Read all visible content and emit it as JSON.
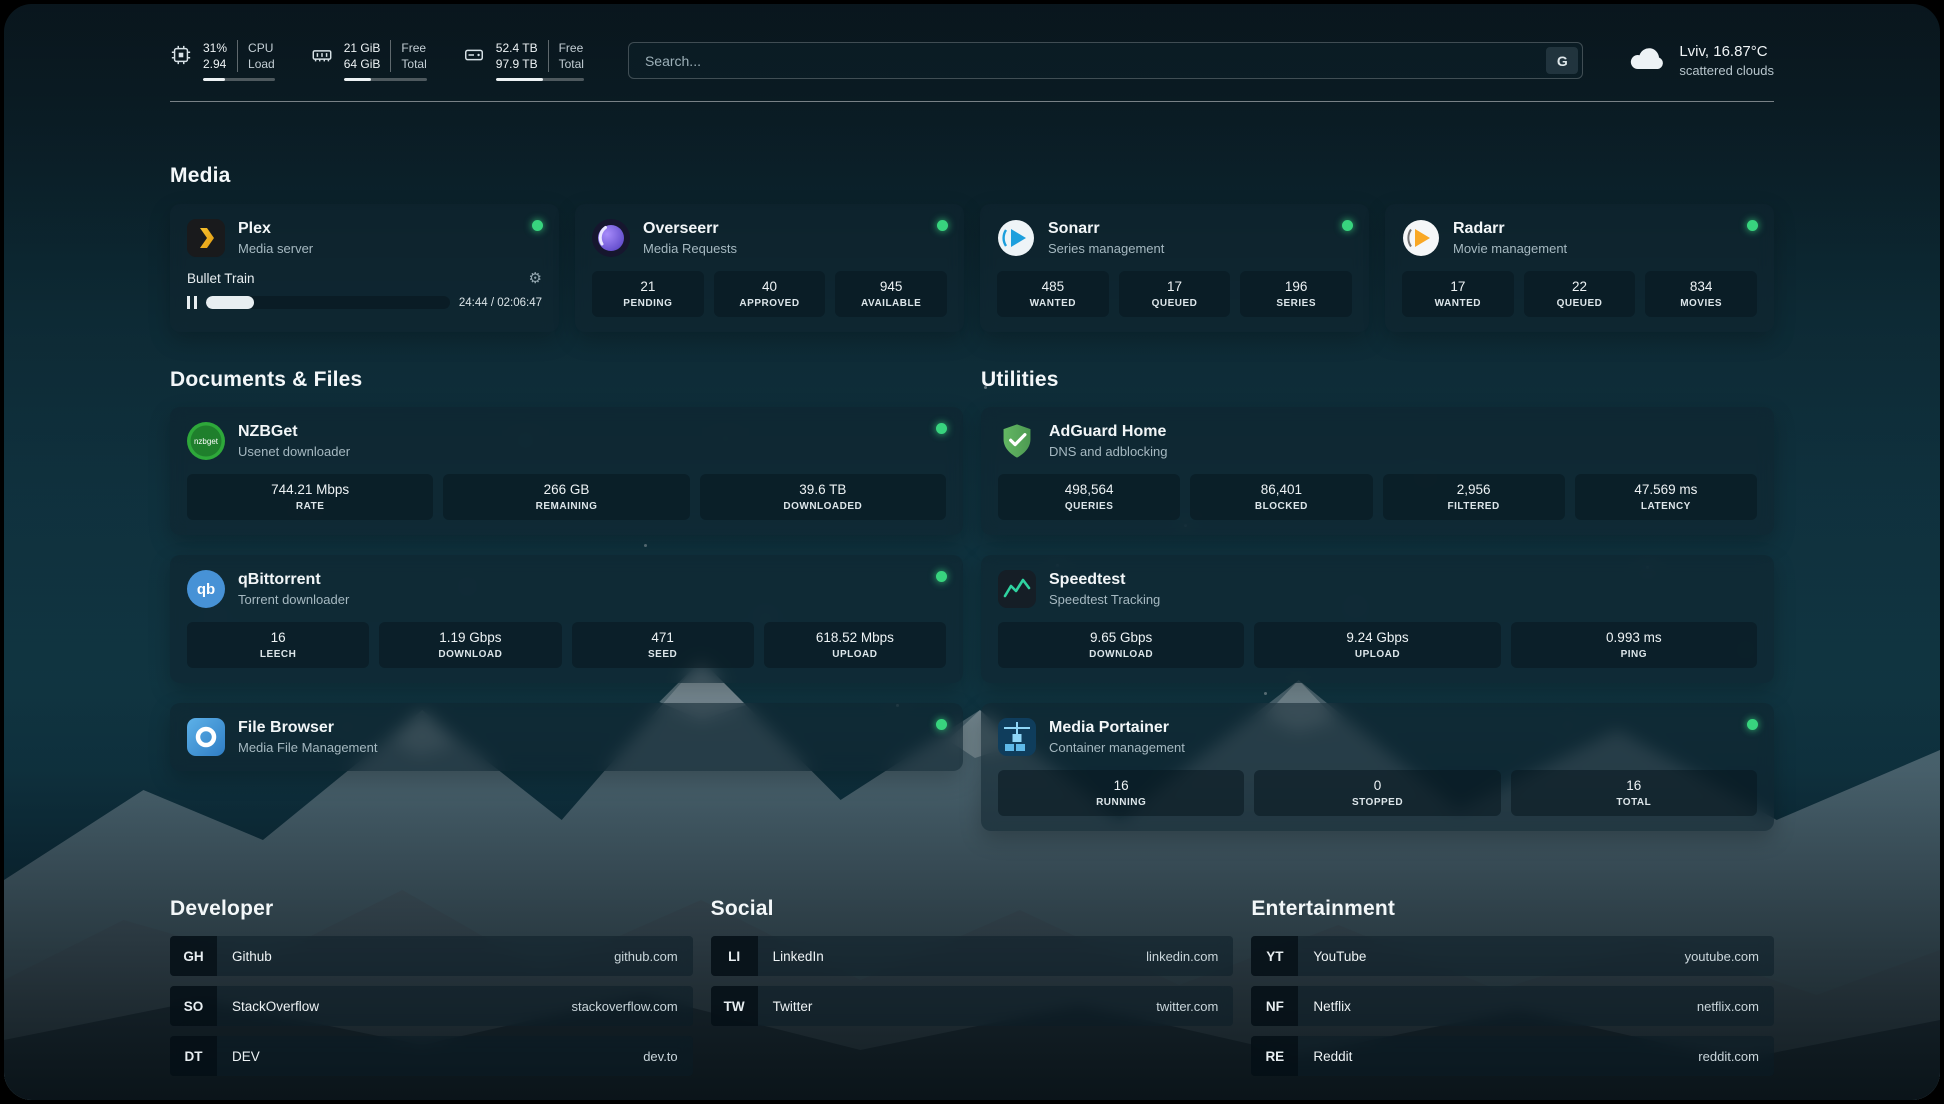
{
  "topbar": {
    "cpu": {
      "line1": "31%",
      "line2": "2.94",
      "label_line1": "CPU",
      "label_line2": "Load",
      "progress": 31
    },
    "ram": {
      "line1": "21 GiB",
      "line2": "64 GiB",
      "label_line1": "Free",
      "label_line2": "Total",
      "progress": 33
    },
    "disk": {
      "line1": "52.4 TB",
      "line2": "97.9 TB",
      "label_line1": "Free",
      "label_line2": "Total",
      "progress": 53
    },
    "search": {
      "placeholder": "Search...",
      "button_label": "G"
    },
    "weather": {
      "icon": "cloud",
      "location": "Lviv, 16.87°C",
      "condition": "scattered clouds"
    }
  },
  "media": {
    "title": "Media",
    "plex": {
      "name": "Plex",
      "subtitle": "Media server",
      "now_playing": "Bullet Train",
      "time": "24:44 / 02:06:47",
      "progress": 19.5,
      "gear_icon": "⚙"
    },
    "overseerr": {
      "name": "Overseerr",
      "subtitle": "Media Requests",
      "stats": [
        {
          "value": "21",
          "label": "PENDING"
        },
        {
          "value": "40",
          "label": "APPROVED"
        },
        {
          "value": "945",
          "label": "AVAILABLE"
        }
      ]
    },
    "sonarr": {
      "name": "Sonarr",
      "subtitle": "Series management",
      "stats": [
        {
          "value": "485",
          "label": "WANTED"
        },
        {
          "value": "17",
          "label": "QUEUED"
        },
        {
          "value": "196",
          "label": "SERIES"
        }
      ]
    },
    "radarr": {
      "name": "Radarr",
      "subtitle": "Movie management",
      "stats": [
        {
          "value": "17",
          "label": "WANTED"
        },
        {
          "value": "22",
          "label": "QUEUED"
        },
        {
          "value": "834",
          "label": "MOVIES"
        }
      ]
    }
  },
  "documents": {
    "title": "Documents & Files",
    "nzbget": {
      "name": "NZBGet",
      "subtitle": "Usenet downloader",
      "stats": [
        {
          "value": "744.21 Mbps",
          "label": "RATE"
        },
        {
          "value": "266 GB",
          "label": "REMAINING"
        },
        {
          "value": "39.6 TB",
          "label": "DOWNLOADED"
        }
      ]
    },
    "qbittorrent": {
      "name": "qBittorrent",
      "subtitle": "Torrent downloader",
      "stats": [
        {
          "value": "16",
          "label": "LEECH"
        },
        {
          "value": "1.19 Gbps",
          "label": "DOWNLOAD"
        },
        {
          "value": "471",
          "label": "SEED"
        },
        {
          "value": "618.52 Mbps",
          "label": "UPLOAD"
        }
      ]
    },
    "filebrowser": {
      "name": "File Browser",
      "subtitle": "Media File Management"
    }
  },
  "utilities": {
    "title": "Utilities",
    "adguard": {
      "name": "AdGuard Home",
      "subtitle": "DNS and adblocking",
      "stats": [
        {
          "value": "498,564",
          "label": "QUERIES"
        },
        {
          "value": "86,401",
          "label": "BLOCKED"
        },
        {
          "value": "2,956",
          "label": "FILTERED"
        },
        {
          "value": "47.569 ms",
          "label": "LATENCY"
        }
      ]
    },
    "speedtest": {
      "name": "Speedtest",
      "subtitle": "Speedtest Tracking",
      "stats": [
        {
          "value": "9.65 Gbps",
          "label": "DOWNLOAD"
        },
        {
          "value": "9.24 Gbps",
          "label": "UPLOAD"
        },
        {
          "value": "0.993 ms",
          "label": "PING"
        }
      ]
    },
    "portainer": {
      "name": "Media Portainer",
      "subtitle": "Container management",
      "stats": [
        {
          "value": "16",
          "label": "RUNNING"
        },
        {
          "value": "0",
          "label": "STOPPED"
        },
        {
          "value": "16",
          "label": "TOTAL"
        }
      ]
    }
  },
  "bookmarks": [
    {
      "title": "Developer",
      "items": [
        {
          "abbr": "GH",
          "name": "Github",
          "url": "github.com"
        },
        {
          "abbr": "SO",
          "name": "StackOverflow",
          "url": "stackoverflow.com"
        },
        {
          "abbr": "DT",
          "name": "DEV",
          "url": "dev.to"
        }
      ]
    },
    {
      "title": "Social",
      "items": [
        {
          "abbr": "LI",
          "name": "LinkedIn",
          "url": "linkedin.com"
        },
        {
          "abbr": "TW",
          "name": "Twitter",
          "url": "twitter.com"
        }
      ]
    },
    {
      "title": "Entertainment",
      "items": [
        {
          "abbr": "YT",
          "name": "YouTube",
          "url": "youtube.com"
        },
        {
          "abbr": "NF",
          "name": "Netflix",
          "url": "netflix.com"
        },
        {
          "abbr": "RE",
          "name": "Reddit",
          "url": "reddit.com"
        }
      ]
    }
  ]
}
